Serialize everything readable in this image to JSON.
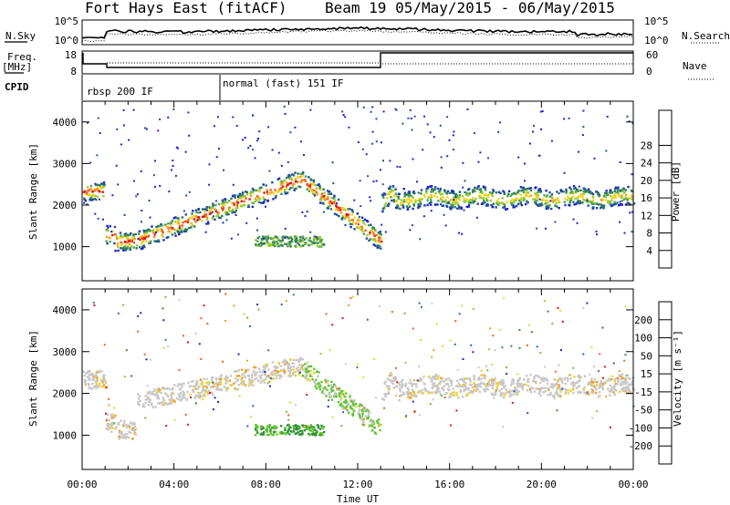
{
  "header": {
    "title_left": "Fort Hays East (fitACF)",
    "title_right": "Beam 19 05/May/2015 - 06/May/2015"
  },
  "noise_panel": {
    "left_label": "N.Sky",
    "right_label": "N.Search",
    "left_ticks": [
      "10^5",
      "10^0"
    ],
    "right_ticks": [
      "10^5",
      "10^0"
    ]
  },
  "freq_panel": {
    "left_label_line1": "Freq.",
    "left_label_line2": "[MHz]",
    "right_label": "Nave",
    "left_ticks": [
      "18",
      "8"
    ],
    "right_ticks": [
      "60",
      "0"
    ]
  },
  "cpid": {
    "label": "CPID",
    "segments": [
      {
        "name": "rbsp 200 IF",
        "start_hour": 0,
        "end_hour": 6
      },
      {
        "name": "normal (fast) 151 IF",
        "start_hour": 6,
        "end_hour": 24
      }
    ]
  },
  "time_axis": {
    "label": "Time UT",
    "ticks": [
      "00:00",
      "04:00",
      "08:00",
      "12:00",
      "16:00",
      "20:00",
      "00:00"
    ]
  },
  "chart_data": [
    {
      "type": "heatmap",
      "name": "power",
      "ylabel": "Slant Range [km]",
      "ylim": [
        180,
        4500
      ],
      "yticks": [
        1000,
        2000,
        3000,
        4000
      ],
      "xlim_hours": [
        0,
        24
      ],
      "colorbar": {
        "label": "Power [dB]",
        "ticks": [
          "4",
          "8",
          "12",
          "16",
          "20",
          "24",
          "28"
        ],
        "colors": [
          "#1a22d6",
          "#1e4ea0",
          "#2f7a58",
          "#4e9e52",
          "#9ccc2e",
          "#f7d21e",
          "#f59b18",
          "#ef5a14",
          "#e0140e"
        ]
      }
    },
    {
      "type": "heatmap",
      "name": "velocity",
      "ylabel": "Slant Range [km]",
      "ylim": [
        180,
        4500
      ],
      "yticks": [
        1000,
        2000,
        3000,
        4000
      ],
      "xlim_hours": [
        0,
        24
      ],
      "colorbar": {
        "label": "Velocity [m s⁻¹]",
        "ticks": [
          "200",
          "100",
          "50",
          "15",
          "-15",
          "-50",
          "-100",
          "-200"
        ],
        "colors": [
          "#2020c8",
          "#2a5cc8",
          "#2f8f3a",
          "#62c432",
          "#c8c8c8",
          "#f2d02a",
          "#f0a020",
          "#f06018",
          "#e01010"
        ]
      }
    }
  ]
}
